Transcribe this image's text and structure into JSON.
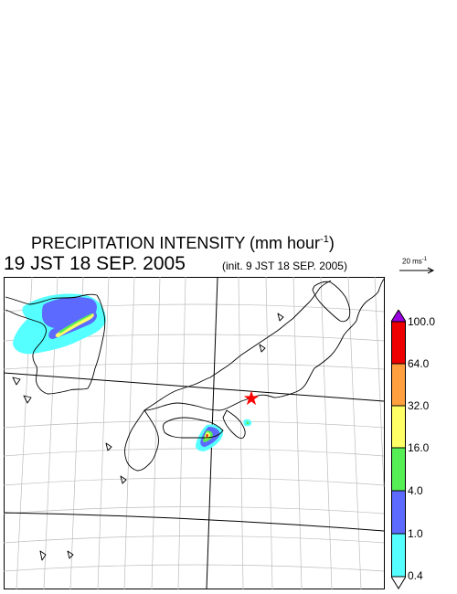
{
  "title": {
    "main": "PRECIPITATION INTENSITY (mm hour",
    "exponent": "-1",
    "close": ")"
  },
  "valid_time": "19 JST 18 SEP. 2005",
  "init_time": "(init. 9 JST 18 SEP. 2005)",
  "reference_vector": {
    "label": "20 ms",
    "exponent": "-1"
  },
  "colorbar": {
    "labels": [
      "100.0",
      "64.0",
      "32.0",
      "16.0",
      "4.0",
      "1.0",
      "0.4"
    ],
    "colors_top_to_bottom": [
      "#9b00e0",
      "#ee0000",
      "#ff9f3f",
      "#ffff66",
      "#55ee55",
      "#5d6aff",
      "#55ffff",
      "#ffffff"
    ]
  },
  "marker": {
    "symbol": "star",
    "color": "#ff0000"
  }
}
